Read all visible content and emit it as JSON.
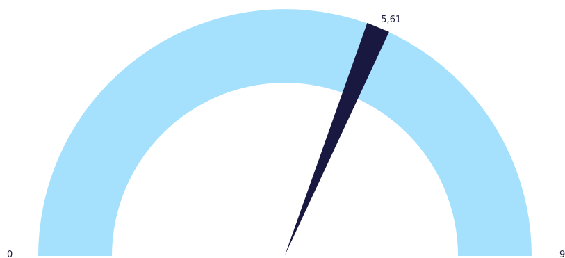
{
  "chart_data": {
    "type": "gauge",
    "min": 0,
    "max": 9,
    "value": 5.61,
    "value_label": "5,61",
    "min_label": "0",
    "max_label": "9",
    "colors": {
      "band": "#a5e0fd",
      "needle": "#181840",
      "text": "#1a1a3e"
    }
  }
}
